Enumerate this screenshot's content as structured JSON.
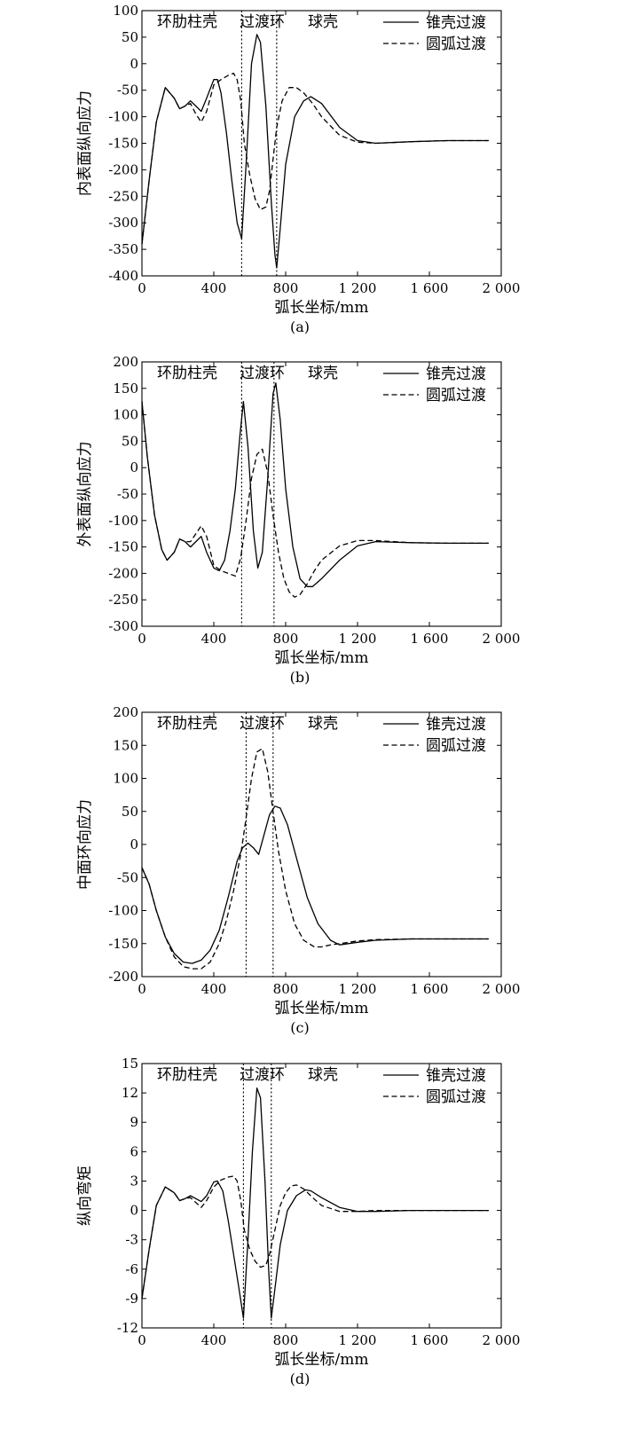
{
  "chart_data": [
    {
      "type": "line",
      "panel_label": "(a)",
      "xlabel": "弧长坐标/mm",
      "ylabel": "内表面纵向应力",
      "xlim": [
        0,
        2000
      ],
      "ylim": [
        -400,
        100
      ],
      "xticks": [
        0,
        400,
        800,
        1200,
        1600,
        2000
      ],
      "xtick_labels": [
        "0",
        "400",
        "800",
        "1 200",
        "1 600",
        "2 000"
      ],
      "yticks": [
        -400,
        -350,
        -300,
        -250,
        -200,
        -150,
        -100,
        -50,
        0,
        50,
        100
      ],
      "region_labels": [
        "环肋柱壳",
        "过渡环",
        "球壳"
      ],
      "boundaries": [
        {
          "name": "锥壳过渡",
          "x": [
            555,
            750
          ]
        }
      ],
      "legend_position": "top-right",
      "series": [
        {
          "name": "锥壳过渡",
          "style": "solid",
          "x": [
            0,
            40,
            80,
            130,
            180,
            210,
            240,
            270,
            300,
            330,
            360,
            400,
            420,
            440,
            470,
            500,
            530,
            555,
            580,
            610,
            640,
            660,
            690,
            720,
            740,
            750,
            770,
            800,
            850,
            900,
            940,
            1000,
            1100,
            1200,
            1300,
            1500,
            1700,
            1930
          ],
          "y": [
            -340,
            -220,
            -110,
            -45,
            -65,
            -85,
            -80,
            -70,
            -80,
            -90,
            -65,
            -30,
            -30,
            -55,
            -130,
            -220,
            -300,
            -330,
            -190,
            0,
            55,
            40,
            -80,
            -260,
            -360,
            -385,
            -310,
            -190,
            -100,
            -70,
            -62,
            -75,
            -120,
            -145,
            -150,
            -147,
            -145,
            -145
          ]
        },
        {
          "name": "圆弧过渡",
          "style": "dashed",
          "x": [
            0,
            40,
            80,
            130,
            180,
            210,
            240,
            270,
            300,
            330,
            360,
            400,
            440,
            480,
            510,
            530,
            550,
            570,
            600,
            630,
            660,
            690,
            710,
            730,
            750,
            780,
            820,
            860,
            900,
            950,
            1000,
            1100,
            1200,
            1300,
            1500,
            1700,
            1930
          ],
          "y": [
            -340,
            -220,
            -110,
            -45,
            -65,
            -85,
            -80,
            -75,
            -95,
            -110,
            -90,
            -40,
            -30,
            -22,
            -18,
            -30,
            -70,
            -150,
            -210,
            -255,
            -275,
            -270,
            -240,
            -180,
            -120,
            -70,
            -45,
            -45,
            -55,
            -75,
            -100,
            -135,
            -148,
            -150,
            -147,
            -145,
            -145
          ]
        }
      ]
    },
    {
      "type": "line",
      "panel_label": "(b)",
      "xlabel": "弧长坐标/mm",
      "ylabel": "外表面纵向应力",
      "xlim": [
        0,
        2000
      ],
      "ylim": [
        -300,
        200
      ],
      "xticks": [
        0,
        400,
        800,
        1200,
        1600,
        2000
      ],
      "xtick_labels": [
        "0",
        "400",
        "800",
        "1 200",
        "1 600",
        "2 000"
      ],
      "yticks": [
        -300,
        -250,
        -200,
        -150,
        -100,
        -50,
        0,
        50,
        100,
        150,
        200
      ],
      "region_labels": [
        "环肋柱壳",
        "过渡环",
        "球壳"
      ],
      "boundaries": [
        {
          "name": "锥壳过渡",
          "x": [
            555,
            735
          ]
        }
      ],
      "legend_position": "top-right",
      "series": [
        {
          "name": "锥壳过渡",
          "style": "solid",
          "x": [
            0,
            30,
            70,
            110,
            140,
            180,
            210,
            240,
            270,
            300,
            330,
            360,
            400,
            430,
            460,
            490,
            520,
            545,
            565,
            590,
            620,
            645,
            670,
            700,
            730,
            745,
            770,
            800,
            840,
            880,
            920,
            950,
            1000,
            1100,
            1200,
            1300,
            1500,
            1700,
            1930
          ],
          "y": [
            125,
            20,
            -90,
            -155,
            -175,
            -160,
            -135,
            -140,
            -150,
            -140,
            -130,
            -160,
            -190,
            -195,
            -175,
            -120,
            -40,
            60,
            125,
            40,
            -120,
            -190,
            -160,
            -20,
            140,
            160,
            90,
            -40,
            -150,
            -210,
            -225,
            -225,
            -210,
            -175,
            -148,
            -140,
            -142,
            -143,
            -143
          ]
        },
        {
          "name": "圆弧过渡",
          "style": "dashed",
          "x": [
            0,
            30,
            70,
            110,
            140,
            180,
            210,
            240,
            270,
            300,
            330,
            360,
            400,
            440,
            480,
            520,
            550,
            580,
            610,
            640,
            670,
            700,
            730,
            760,
            790,
            820,
            850,
            880,
            920,
            960,
            1000,
            1100,
            1200,
            1300,
            1500,
            1700,
            1930
          ],
          "y": [
            125,
            20,
            -90,
            -155,
            -175,
            -160,
            -135,
            -140,
            -140,
            -125,
            -110,
            -130,
            -185,
            -195,
            -200,
            -205,
            -170,
            -100,
            -20,
            25,
            35,
            -10,
            -90,
            -160,
            -210,
            -235,
            -245,
            -240,
            -220,
            -195,
            -175,
            -148,
            -138,
            -138,
            -142,
            -143,
            -143
          ]
        }
      ]
    },
    {
      "type": "line",
      "panel_label": "(c)",
      "xlabel": "弧长坐标/mm",
      "ylabel": "中面环向应力",
      "xlim": [
        0,
        2000
      ],
      "ylim": [
        -200,
        200
      ],
      "xticks": [
        0,
        400,
        800,
        1200,
        1600,
        2000
      ],
      "xtick_labels": [
        "0",
        "400",
        "800",
        "1 200",
        "1 600",
        "2 000"
      ],
      "yticks": [
        -200,
        -150,
        -100,
        -50,
        0,
        50,
        100,
        150,
        200
      ],
      "region_labels": [
        "环肋柱壳",
        "过渡环",
        "球壳"
      ],
      "boundaries": [
        {
          "name": "锥壳过渡",
          "x": [
            580,
            730
          ]
        }
      ],
      "legend_position": "top-right",
      "series": [
        {
          "name": "锥壳过渡",
          "style": "solid",
          "x": [
            0,
            40,
            80,
            130,
            180,
            230,
            280,
            330,
            380,
            430,
            480,
            530,
            560,
            590,
            620,
            650,
            680,
            710,
            740,
            770,
            810,
            860,
            920,
            980,
            1050,
            1100,
            1200,
            1300,
            1500,
            1700,
            1930
          ],
          "y": [
            -35,
            -60,
            -100,
            -140,
            -165,
            -178,
            -180,
            -175,
            -160,
            -130,
            -80,
            -25,
            -5,
            2,
            -5,
            -15,
            15,
            45,
            58,
            55,
            30,
            -20,
            -80,
            -120,
            -145,
            -152,
            -148,
            -145,
            -143,
            -143,
            -143
          ]
        },
        {
          "name": "圆弧过渡",
          "style": "dashed",
          "x": [
            0,
            40,
            80,
            130,
            180,
            230,
            280,
            330,
            380,
            430,
            470,
            510,
            550,
            580,
            610,
            640,
            670,
            700,
            730,
            760,
            800,
            850,
            900,
            960,
            1000,
            1050,
            1100,
            1200,
            1300,
            1500,
            1700,
            1930
          ],
          "y": [
            -35,
            -60,
            -100,
            -140,
            -170,
            -185,
            -188,
            -188,
            -178,
            -150,
            -115,
            -70,
            -15,
            40,
            100,
            140,
            145,
            110,
            50,
            -10,
            -70,
            -120,
            -145,
            -155,
            -155,
            -152,
            -150,
            -146,
            -144,
            -143,
            -143,
            -143
          ]
        }
      ]
    },
    {
      "type": "line",
      "panel_label": "(d)",
      "xlabel": "弧长坐标/mm",
      "ylabel": "纵向弯矩",
      "xlim": [
        0,
        2000
      ],
      "ylim": [
        -12,
        15
      ],
      "xticks": [
        0,
        400,
        800,
        1200,
        1600,
        2000
      ],
      "xtick_labels": [
        "0",
        "400",
        "800",
        "1 200",
        "1 600",
        "2 000"
      ],
      "yticks": [
        -12,
        -9,
        -6,
        -3,
        0,
        3,
        6,
        9,
        12,
        15
      ],
      "region_labels": [
        "环肋柱壳",
        "过渡环",
        "球壳"
      ],
      "boundaries": [
        {
          "name": "锥壳过渡",
          "x": [
            565,
            720
          ]
        }
      ],
      "legend_position": "top-right",
      "series": [
        {
          "name": "锥壳过渡",
          "style": "solid",
          "x": [
            0,
            40,
            80,
            130,
            180,
            210,
            240,
            270,
            300,
            330,
            360,
            400,
            420,
            450,
            480,
            510,
            540,
            565,
            590,
            615,
            640,
            660,
            685,
            705,
            720,
            740,
            770,
            810,
            860,
            910,
            940,
            1000,
            1100,
            1200,
            1300,
            1500,
            1700,
            1930
          ],
          "y": [
            -9,
            -4,
            0.5,
            2.4,
            1.8,
            1.0,
            1.2,
            1.5,
            1.2,
            0.9,
            1.5,
            2.9,
            3.0,
            2.0,
            -1.0,
            -4.5,
            -8,
            -11,
            -3,
            6,
            12.5,
            11.5,
            3,
            -6,
            -11,
            -8,
            -3.5,
            0,
            1.5,
            2.1,
            2.0,
            1.3,
            0.3,
            -0.1,
            -0.1,
            0,
            0,
            0
          ]
        },
        {
          "name": "圆弧过渡",
          "style": "dashed",
          "x": [
            0,
            40,
            80,
            130,
            180,
            210,
            240,
            270,
            300,
            330,
            360,
            400,
            440,
            480,
            510,
            530,
            550,
            570,
            600,
            630,
            660,
            690,
            710,
            740,
            770,
            800,
            830,
            860,
            900,
            950,
            1000,
            1100,
            1200,
            1300,
            1500,
            1700,
            1930
          ],
          "y": [
            -9,
            -4,
            0.5,
            2.4,
            1.8,
            1.0,
            1.2,
            1.3,
            0.8,
            0.3,
            1.0,
            2.4,
            3.1,
            3.4,
            3.5,
            3.0,
            1.0,
            -2.0,
            -4.0,
            -5.2,
            -5.8,
            -5.6,
            -4.5,
            -2,
            0.5,
            1.8,
            2.5,
            2.6,
            2.2,
            1.3,
            0.5,
            -0.1,
            -0.1,
            0,
            0,
            0,
            0
          ]
        }
      ]
    }
  ]
}
